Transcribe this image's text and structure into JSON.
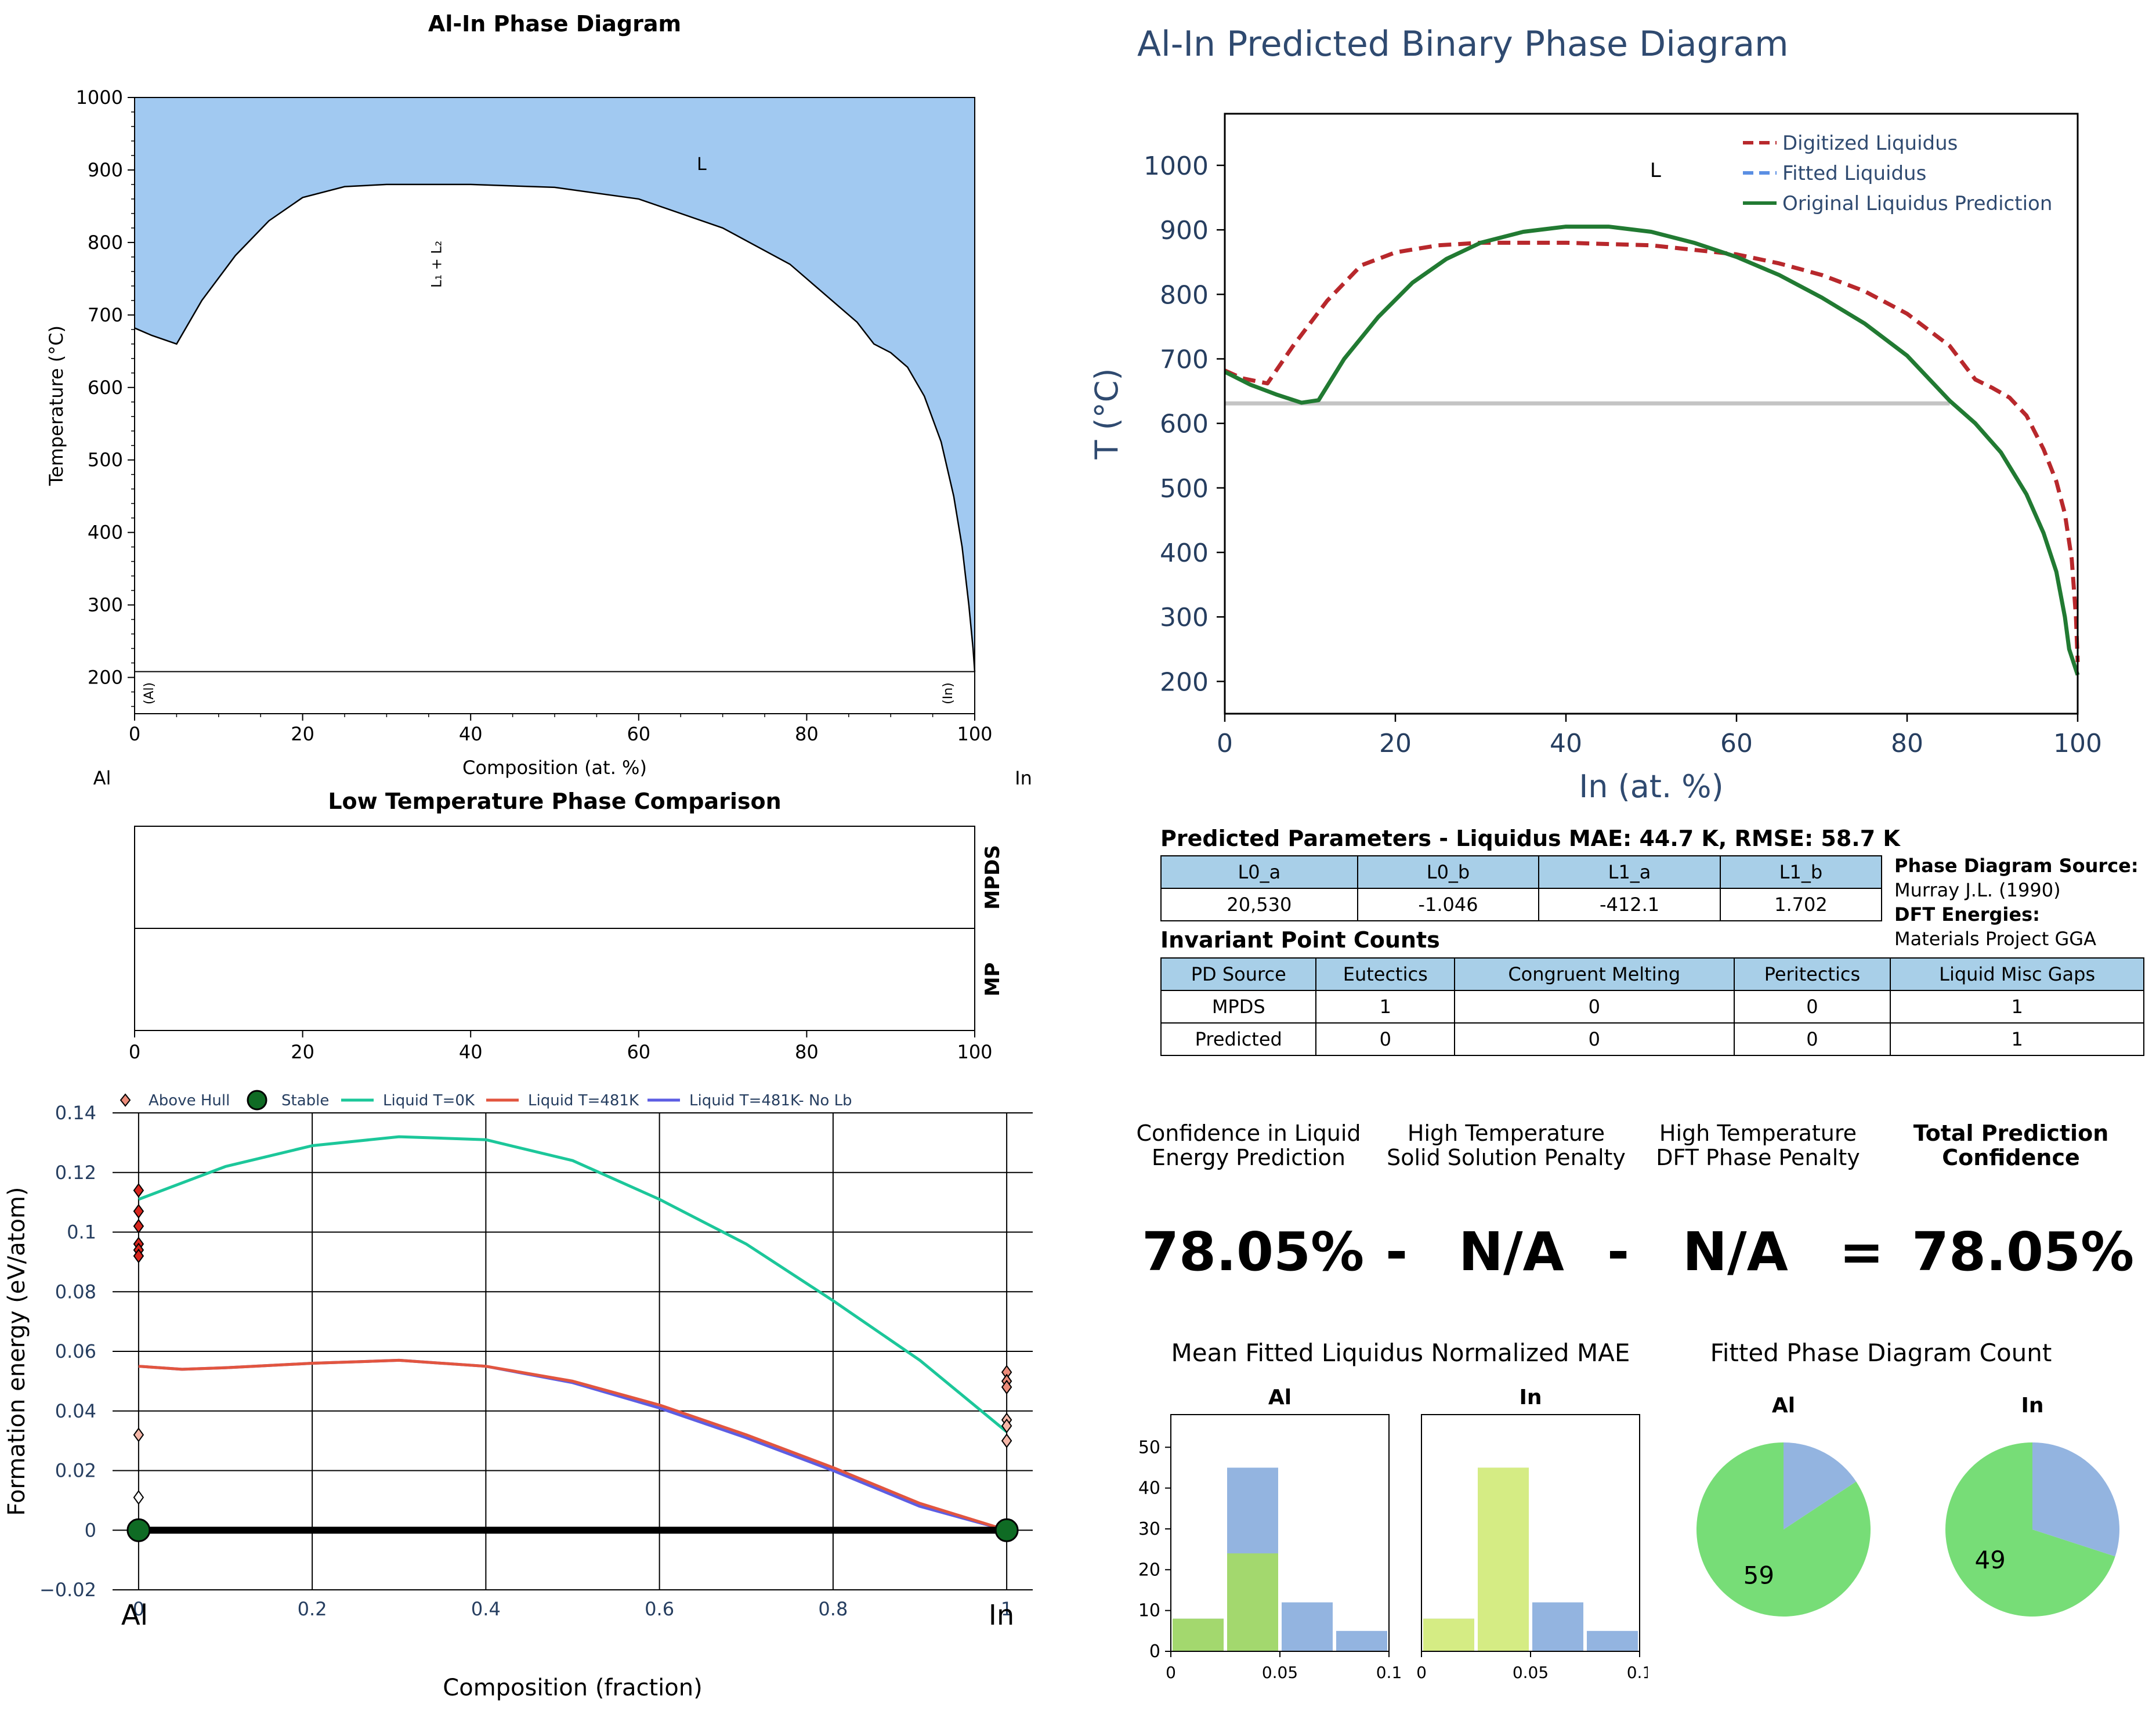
{
  "chart_data": [
    {
      "id": "phase",
      "type": "area",
      "title": "Al-In Phase Diagram",
      "xlabel": "Composition (at. %)",
      "ylabel": "Temperature (°C)",
      "xlim": [
        0,
        100
      ],
      "ylim": [
        150,
        1000
      ],
      "xticks": [
        0,
        20,
        40,
        60,
        80,
        100
      ],
      "yticks": [
        200,
        300,
        400,
        500,
        600,
        700,
        800,
        900,
        1000
      ],
      "left_element": "Al",
      "right_element": "In",
      "region_labels": {
        "liquid": "L",
        "miscibility_gap": "L₁ + L₂",
        "al_solid": "(Al)",
        "in_solid": "(In)"
      },
      "solid_line_T": 208,
      "liquid_fill": "#a1c9f1",
      "boundary": [
        [
          0,
          682
        ],
        [
          2,
          672
        ],
        [
          5,
          660
        ],
        [
          8,
          720
        ],
        [
          12,
          782
        ],
        [
          16,
          830
        ],
        [
          20,
          862
        ],
        [
          25,
          877
        ],
        [
          30,
          880
        ],
        [
          40,
          880
        ],
        [
          50,
          876
        ],
        [
          60,
          860
        ],
        [
          70,
          820
        ],
        [
          78,
          770
        ],
        [
          82,
          730
        ],
        [
          86,
          690
        ],
        [
          88,
          660
        ],
        [
          90,
          648
        ],
        [
          92,
          628
        ],
        [
          94,
          588
        ],
        [
          96,
          525
        ],
        [
          97.5,
          450
        ],
        [
          98.5,
          380
        ],
        [
          99.3,
          300
        ],
        [
          99.8,
          240
        ],
        [
          100,
          208
        ]
      ]
    },
    {
      "id": "predicted",
      "type": "line",
      "title": "Al-In Predicted Binary Phase Diagram",
      "xlabel": "In (at. %)",
      "ylabel": "T (°C)",
      "xlim": [
        0,
        100
      ],
      "ylim": [
        150,
        1080
      ],
      "xticks": [
        0,
        20,
        40,
        60,
        80,
        100
      ],
      "yticks": [
        200,
        300,
        400,
        500,
        600,
        700,
        800,
        900,
        1000
      ],
      "region_label": "L",
      "monotectic_T": 631,
      "monotectic_x": [
        0,
        85
      ],
      "legend_position": "top-right",
      "series": [
        {
          "name": "Digitized Liquidus",
          "color": "#b8282c",
          "dash": "dashed",
          "points": [
            [
              0,
              682
            ],
            [
              2,
              670
            ],
            [
              5,
              662
            ],
            [
              8,
              720
            ],
            [
              12,
              790
            ],
            [
              16,
              845
            ],
            [
              20,
              865
            ],
            [
              25,
              876
            ],
            [
              30,
              880
            ],
            [
              40,
              880
            ],
            [
              50,
              876
            ],
            [
              60,
              862
            ],
            [
              65,
              848
            ],
            [
              70,
              830
            ],
            [
              75,
              805
            ],
            [
              80,
              770
            ],
            [
              85,
              720
            ],
            [
              88,
              668
            ],
            [
              90,
              655
            ],
            [
              92,
              640
            ],
            [
              94,
              612
            ],
            [
              96,
              560
            ],
            [
              97.5,
              510
            ],
            [
              98.5,
              460
            ],
            [
              99.3,
              390
            ],
            [
              99.8,
              300
            ],
            [
              100,
              230
            ]
          ]
        },
        {
          "name": "Fitted Liquidus",
          "color": "#5b8fe3",
          "dash": "dashed",
          "points": []
        },
        {
          "name": "Original Liquidus Prediction",
          "color": "#217a32",
          "dash": "solid",
          "points": [
            [
              0,
              680
            ],
            [
              3,
              660
            ],
            [
              6,
              645
            ],
            [
              9,
              632
            ],
            [
              11,
              636
            ],
            [
              14,
              700
            ],
            [
              18,
              765
            ],
            [
              22,
              818
            ],
            [
              26,
              855
            ],
            [
              30,
              880
            ],
            [
              35,
              897
            ],
            [
              40,
              905
            ],
            [
              45,
              905
            ],
            [
              50,
              897
            ],
            [
              55,
              880
            ],
            [
              60,
              858
            ],
            [
              65,
              830
            ],
            [
              70,
              795
            ],
            [
              75,
              755
            ],
            [
              80,
              705
            ],
            [
              85,
              635
            ],
            [
              88,
              600
            ],
            [
              91,
              555
            ],
            [
              94,
              490
            ],
            [
              96,
              430
            ],
            [
              97.5,
              370
            ],
            [
              98.5,
              300
            ],
            [
              99,
              250
            ],
            [
              99.5,
              230
            ],
            [
              100,
              210
            ]
          ]
        }
      ]
    },
    {
      "id": "lowtemp",
      "type": "bar",
      "title": "Low Temperature Phase Comparison",
      "rows": [
        "MPDS",
        "MP"
      ],
      "xlim": [
        0,
        100
      ],
      "xticks": [
        0,
        20,
        40,
        60,
        80,
        100
      ]
    },
    {
      "id": "hull",
      "type": "scatter",
      "xlabel": "Composition (fraction)",
      "ylabel": "Formation energy (eV/atom)",
      "xlim": [
        -0.03,
        1.03
      ],
      "ylim": [
        -0.02,
        0.14
      ],
      "xticks": [
        0,
        0.2,
        0.4,
        0.6,
        0.8,
        1
      ],
      "xtick_labels": [
        "0",
        "0.2",
        "0.4",
        "0.6",
        "0.8",
        "1"
      ],
      "yticks": [
        -0.02,
        0,
        0.02,
        0.04,
        0.06,
        0.08,
        0.1,
        0.12,
        0.14
      ],
      "ytick_labels": [
        "−0.02",
        "0",
        "0.02",
        "0.04",
        "0.06",
        "0.08",
        "0.1",
        "0.12",
        "0.14"
      ],
      "left_element": "Al",
      "right_element": "In",
      "grid": true,
      "legend_position": "top",
      "legend": [
        "Above Hull",
        "Stable",
        "Liquid T=0K",
        "Liquid T=481K",
        "Liquid T=481K- No Lb"
      ],
      "above_hull": [
        [
          0,
          0.114
        ],
        [
          0,
          0.107
        ],
        [
          0,
          0.102
        ],
        [
          0,
          0.096
        ],
        [
          0,
          0.094
        ],
        [
          0,
          0.092
        ],
        [
          0,
          0.032
        ],
        [
          0,
          0.011
        ],
        [
          1,
          0.053
        ],
        [
          1,
          0.05
        ],
        [
          1,
          0.048
        ],
        [
          1,
          0.037
        ],
        [
          1,
          0.035
        ],
        [
          1,
          0.03
        ]
      ],
      "stable": [
        [
          0,
          0
        ],
        [
          1,
          0
        ]
      ],
      "liquid_0K": [
        [
          0,
          0.111
        ],
        [
          0.1,
          0.122
        ],
        [
          0.2,
          0.129
        ],
        [
          0.3,
          0.132
        ],
        [
          0.4,
          0.131
        ],
        [
          0.5,
          0.124
        ],
        [
          0.6,
          0.111
        ],
        [
          0.7,
          0.096
        ],
        [
          0.8,
          0.077
        ],
        [
          0.9,
          0.057
        ],
        [
          1,
          0.033
        ]
      ],
      "liquid_481K": [
        [
          0,
          0.055
        ],
        [
          0.05,
          0.054
        ],
        [
          0.1,
          0.0545
        ],
        [
          0.2,
          0.056
        ],
        [
          0.3,
          0.057
        ],
        [
          0.4,
          0.055
        ],
        [
          0.5,
          0.05
        ],
        [
          0.6,
          0.042
        ],
        [
          0.7,
          0.032
        ],
        [
          0.8,
          0.021
        ],
        [
          0.9,
          0.009
        ],
        [
          1,
          0
        ]
      ],
      "liquid_481K_nolb": [
        [
          0,
          0.055
        ],
        [
          0.05,
          0.054
        ],
        [
          0.1,
          0.0545
        ],
        [
          0.2,
          0.056
        ],
        [
          0.3,
          0.057
        ],
        [
          0.4,
          0.055
        ],
        [
          0.5,
          0.0495
        ],
        [
          0.6,
          0.041
        ],
        [
          0.7,
          0.031
        ],
        [
          0.8,
          0.02
        ],
        [
          0.9,
          0.008
        ],
        [
          1,
          0
        ]
      ],
      "colors": {
        "above_hull": "#e74c3c",
        "stable": "#0f6b24",
        "liquid_0K": "#1cc79a",
        "liquid_481K": "#e2553f",
        "liquid_481K_nolb": "#5d5ee3"
      }
    },
    {
      "id": "mae",
      "type": "bar",
      "title": "Mean Fitted Liquidus Normalized MAE",
      "bin_edges": [
        0,
        0.025,
        0.05,
        0.075,
        0.1
      ],
      "xticks": [
        0,
        0.05,
        0.1
      ],
      "xtick_labels": [
        "0",
        "0.05",
        "0.1"
      ],
      "yticks": [
        0,
        10,
        20,
        30,
        40,
        50
      ],
      "ylim": [
        0,
        58
      ],
      "panels": [
        {
          "title": "Al",
          "bars": [
            {
              "bin": 0,
              "total": 8,
              "highlight": 8
            },
            {
              "bin": 1,
              "total": 45,
              "highlight": 24
            },
            {
              "bin": 2,
              "total": 12,
              "highlight": 0
            },
            {
              "bin": 3,
              "total": 5,
              "highlight": 0
            }
          ],
          "highlight_color": "#a3d86e"
        },
        {
          "title": "In",
          "bars": [
            {
              "bin": 0,
              "total": 8,
              "highlight": 8
            },
            {
              "bin": 1,
              "total": 45,
              "highlight": 45
            },
            {
              "bin": 2,
              "total": 12,
              "highlight": 0
            },
            {
              "bin": 3,
              "total": 5,
              "highlight": 0
            }
          ],
          "highlight_color": "#d5ec84"
        }
      ],
      "base_color": "#93b4e0"
    },
    {
      "id": "count",
      "type": "pie",
      "title": "Fitted Phase Diagram Count",
      "panels": [
        {
          "title": "Al",
          "slices": [
            {
              "value": 59,
              "color": "#77dd77",
              "label": "59"
            },
            {
              "value": 11,
              "color": "#93b4e0"
            }
          ]
        },
        {
          "title": "In",
          "slices": [
            {
              "value": 49,
              "color": "#77dd77",
              "label": "49"
            },
            {
              "value": 21,
              "color": "#93b4e0"
            }
          ]
        }
      ]
    }
  ],
  "params": {
    "title": "Predicted Parameters - Liquidus MAE: 44.7 K, RMSE: 58.7 K",
    "headers": [
      "L0_a",
      "L0_b",
      "L1_a",
      "L1_b"
    ],
    "values": [
      "20,530",
      "-1.046",
      "-412.1",
      "1.702"
    ]
  },
  "source": {
    "pd_label": "Phase Diagram Source:",
    "pd_value": "Murray J.L. (1990)",
    "dft_label": "DFT Energies:",
    "dft_value": "Materials Project GGA"
  },
  "invariants": {
    "title": "Invariant Point Counts",
    "headers": [
      "PD Source",
      "Eutectics",
      "Congruent Melting",
      "Peritectics",
      "Liquid Misc Gaps"
    ],
    "rows": [
      [
        "MPDS",
        "1",
        "0",
        "0",
        "1"
      ],
      [
        "Predicted",
        "0",
        "0",
        "0",
        "1"
      ]
    ]
  },
  "confidence": {
    "labels": [
      [
        "Confidence in Liquid",
        "Energy Prediction"
      ],
      [
        "High Temperature",
        "Solid Solution Penalty"
      ],
      [
        "High Temperature",
        "DFT Phase Penalty"
      ],
      [
        "Total Prediction",
        "Confidence"
      ]
    ],
    "values": [
      "78.05%",
      "N/A",
      "N/A",
      "78.05%"
    ],
    "ops": [
      "-",
      "-",
      "="
    ]
  }
}
